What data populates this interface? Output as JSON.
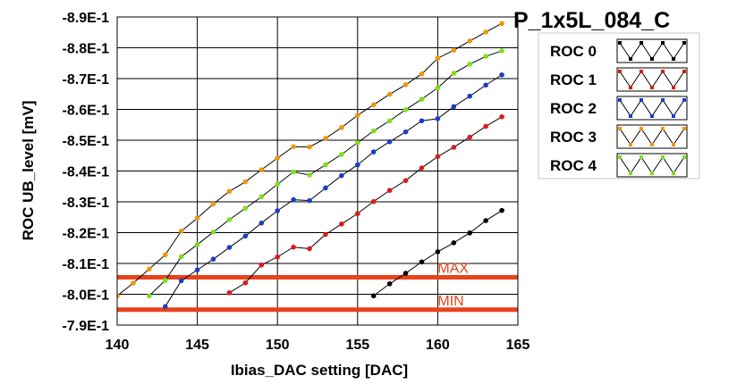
{
  "chart_data": {
    "type": "line",
    "title": "P_1x5L_084_C",
    "xlabel": "Ibias_DAC setting [DAC]",
    "ylabel": "ROC UB_level [mV]",
    "xlim": [
      140,
      165
    ],
    "ylim": [
      -0.89,
      -0.79
    ],
    "x_ticks": [
      140,
      145,
      150,
      155,
      160,
      165
    ],
    "x_tick_labels": [
      "140",
      "145",
      "150",
      "155",
      "160",
      "165"
    ],
    "y_ticks": [
      -0.79,
      -0.8,
      -0.81,
      -0.82,
      -0.83,
      -0.84,
      -0.85,
      -0.86,
      -0.87,
      -0.88,
      -0.89
    ],
    "y_tick_labels": [
      "-7.9E-1",
      "-8.0E-1",
      "-8.1E-1",
      "-8.2E-1",
      "-8.3E-1",
      "-8.4E-1",
      "-8.5E-1",
      "-8.6E-1",
      "-8.7E-1",
      "-8.8E-1",
      "-8.9E-1"
    ],
    "grid": true,
    "legend_position": "right",
    "reference_lines": [
      {
        "label": "MIN",
        "y": -0.795,
        "color": "#e8431a"
      },
      {
        "label": "MAX",
        "y": -0.8055,
        "color": "#e8431a"
      }
    ],
    "series": [
      {
        "name": "ROC 0",
        "color": "#000000",
        "x": [
          156,
          157,
          158,
          159,
          160,
          161,
          162,
          163,
          164
        ],
        "y": [
          -0.7995,
          -0.8034,
          -0.8068,
          -0.8105,
          -0.8138,
          -0.8167,
          -0.8199,
          -0.8239,
          -0.8272
        ]
      },
      {
        "name": "ROC 1",
        "color": "#e01818",
        "x": [
          147,
          148,
          149,
          150,
          151,
          152,
          153,
          154,
          155,
          156,
          157,
          158,
          159,
          160,
          161,
          162,
          163,
          164
        ],
        "y": [
          -0.8005,
          -0.8037,
          -0.8095,
          -0.8121,
          -0.8153,
          -0.8148,
          -0.8194,
          -0.8228,
          -0.8262,
          -0.8301,
          -0.8337,
          -0.8369,
          -0.841,
          -0.8447,
          -0.8477,
          -0.851,
          -0.8545,
          -0.8576
        ]
      },
      {
        "name": "ROC 2",
        "color": "#1a3ccc",
        "x": [
          143,
          144,
          145,
          146,
          147,
          148,
          149,
          150,
          151,
          152,
          153,
          154,
          155,
          156,
          157,
          158,
          159,
          160,
          161,
          162,
          163,
          164
        ],
        "y": [
          -0.796,
          -0.8044,
          -0.8079,
          -0.8114,
          -0.8152,
          -0.8189,
          -0.8231,
          -0.8271,
          -0.8307,
          -0.8304,
          -0.8345,
          -0.8385,
          -0.842,
          -0.8462,
          -0.8495,
          -0.8527,
          -0.8563,
          -0.857,
          -0.8609,
          -0.8643,
          -0.8679,
          -0.8712
        ]
      },
      {
        "name": "ROC 3",
        "color": "#f0960a",
        "x": [
          140,
          141,
          142,
          143,
          144,
          145,
          146,
          147,
          148,
          149,
          150,
          151,
          152,
          153,
          154,
          155,
          156,
          157,
          158,
          159,
          160,
          161,
          162,
          163,
          164
        ],
        "y": [
          -0.7995,
          -0.8036,
          -0.8082,
          -0.8128,
          -0.8205,
          -0.8247,
          -0.8293,
          -0.8334,
          -0.8365,
          -0.8404,
          -0.8442,
          -0.8479,
          -0.8478,
          -0.8506,
          -0.8541,
          -0.8581,
          -0.8615,
          -0.8649,
          -0.868,
          -0.8715,
          -0.8766,
          -0.8792,
          -0.8822,
          -0.8851,
          -0.8879
        ]
      },
      {
        "name": "ROC 4",
        "color": "#7ce01a",
        "x": [
          142,
          143,
          144,
          145,
          146,
          147,
          148,
          149,
          150,
          151,
          152,
          153,
          154,
          155,
          156,
          157,
          158,
          159,
          160,
          161,
          162,
          163,
          164
        ],
        "y": [
          -0.7995,
          -0.8045,
          -0.8122,
          -0.8161,
          -0.8202,
          -0.8242,
          -0.8279,
          -0.8316,
          -0.8357,
          -0.8397,
          -0.8387,
          -0.842,
          -0.8454,
          -0.8492,
          -0.853,
          -0.8563,
          -0.8599,
          -0.8633,
          -0.867,
          -0.8717,
          -0.8747,
          -0.8772,
          -0.879
        ]
      }
    ]
  }
}
